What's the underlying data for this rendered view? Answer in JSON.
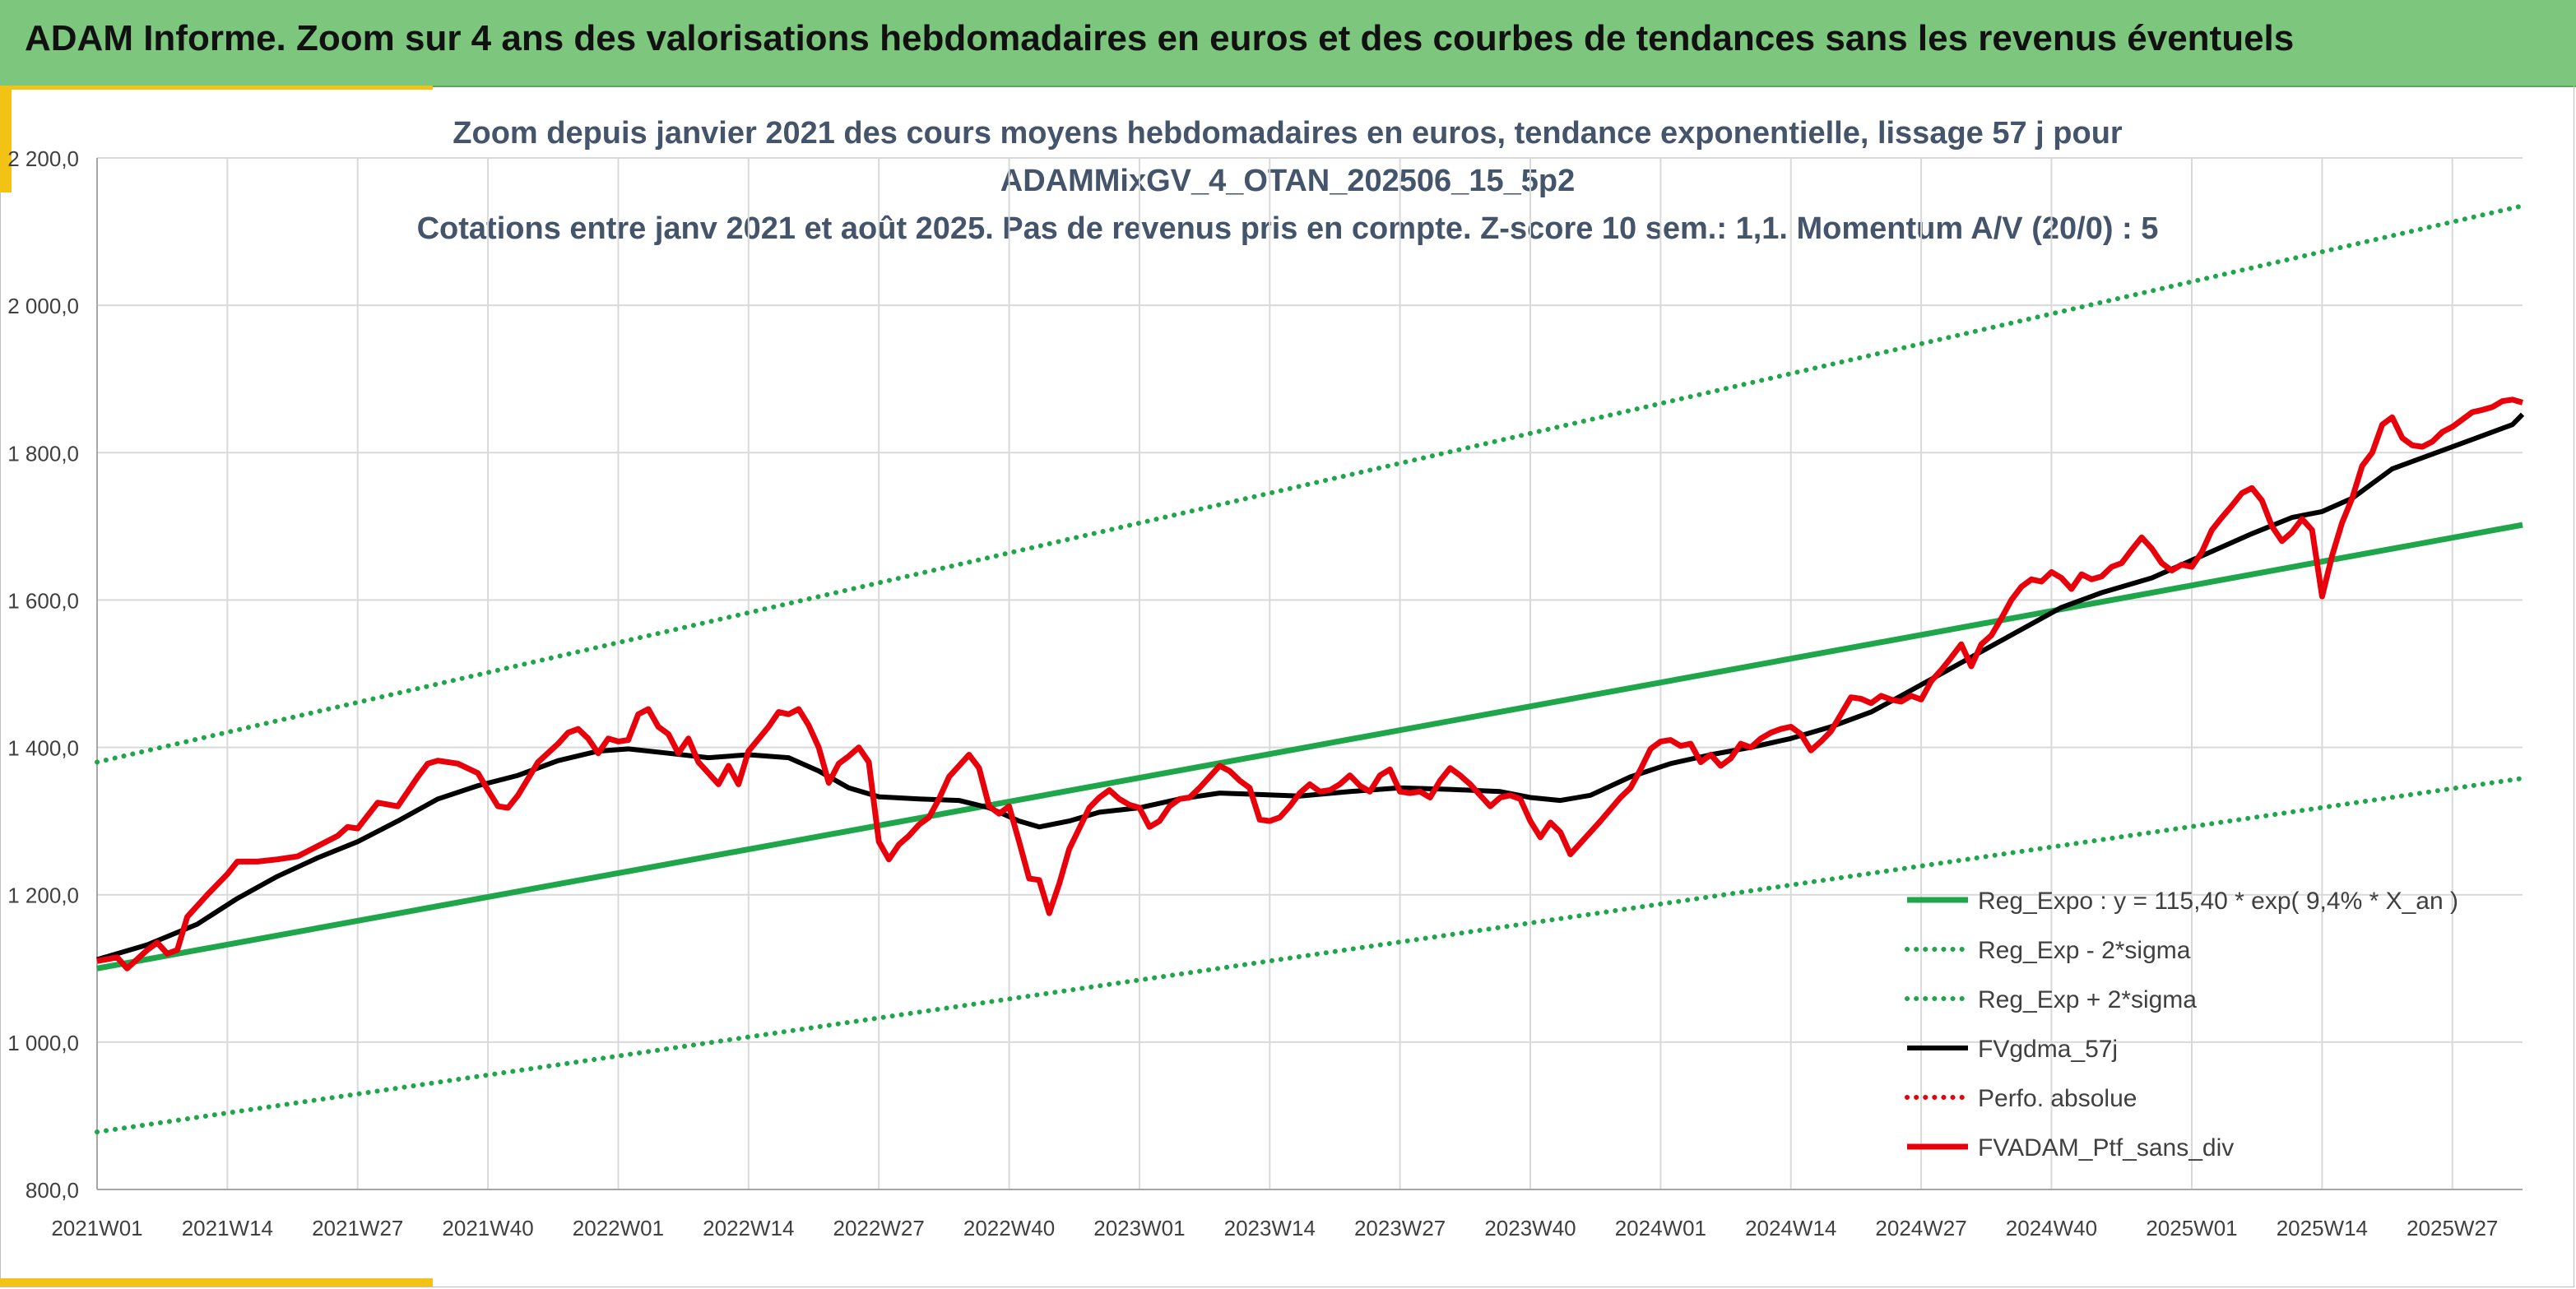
{
  "header": {
    "title": "ADAM Informe. Zoom sur 4 ans des valorisations hebdomadaires en euros et des courbes de tendances sans les revenus éventuels"
  },
  "colors": {
    "header_bg": "#7dc67e",
    "accent": "#f2c314",
    "trend": "#1fa64a",
    "sigma": "#1fa64a",
    "ma": "#000000",
    "portfolio": "#e8000b",
    "perfo": "#e8000b"
  },
  "chart_data": {
    "type": "line",
    "title_lines": [
      "Zoom depuis janvier 2021 des cours moyens hebdomadaires en euros, tendance exponentielle, lissage 57 j pour",
      "ADAMMixGV_4_OTAN_202506_15_5p2",
      "Cotations entre janv 2021 et août 2025. Pas de revenus pris en compte. Z-score 10 sem.: 1,1. Momentum A/V (20/0) : 5"
    ],
    "x_unit": "week index (0 = 2021W01)",
    "x_ticks": [
      "2021W01",
      "2021W14",
      "2021W27",
      "2021W40",
      "2022W01",
      "2022W14",
      "2022W27",
      "2022W40",
      "2023W01",
      "2023W14",
      "2023W27",
      "2023W40",
      "2024W01",
      "2024W14",
      "2024W27",
      "2024W40",
      "2025W01",
      "2025W14",
      "2025W27"
    ],
    "x_tick_weeks": [
      0,
      13,
      26,
      39,
      52,
      65,
      78,
      91,
      104,
      117,
      130,
      143,
      156,
      169,
      182,
      195,
      209,
      222,
      235
    ],
    "x_range": [
      0,
      242
    ],
    "ylim": [
      800,
      2200
    ],
    "y_ticks": [
      800,
      1000,
      1200,
      1400,
      1600,
      1800,
      2000,
      2200
    ],
    "y_tick_labels": [
      "800,0",
      "1 000,0",
      "1 200,0",
      "1 400,0",
      "1 600,0",
      "1 800,0",
      "2 000,0",
      "2 200,0"
    ],
    "grid": true,
    "legend_position": "bottom-right",
    "series": [
      {
        "name": "Reg_Expo : y = 115,40 * exp( 9,4% *  X_an )",
        "style": "solid-thick",
        "color": "#1fa64a",
        "points": [
          [
            0,
            1100
          ],
          [
            242,
            1702
          ]
        ]
      },
      {
        "name": "Reg_Exp - 2*sigma",
        "style": "dotted",
        "color": "#1fa64a",
        "points": [
          [
            0,
            878
          ],
          [
            242,
            1358
          ]
        ]
      },
      {
        "name": "Reg_Exp + 2*sigma",
        "style": "dotted",
        "color": "#1fa64a",
        "points": [
          [
            0,
            1380
          ],
          [
            242,
            2135
          ]
        ]
      },
      {
        "name": "FVgdma_57j",
        "style": "solid",
        "color": "#000000",
        "points": [
          [
            0,
            1112
          ],
          [
            5,
            1132
          ],
          [
            10,
            1160
          ],
          [
            14,
            1195
          ],
          [
            18,
            1225
          ],
          [
            22,
            1250
          ],
          [
            26,
            1272
          ],
          [
            30,
            1300
          ],
          [
            34,
            1330
          ],
          [
            38,
            1348
          ],
          [
            42,
            1362
          ],
          [
            46,
            1382
          ],
          [
            50,
            1395
          ],
          [
            53,
            1398
          ],
          [
            57,
            1392
          ],
          [
            61,
            1386
          ],
          [
            65,
            1390
          ],
          [
            69,
            1386
          ],
          [
            72,
            1368
          ],
          [
            75,
            1345
          ],
          [
            78,
            1333
          ],
          [
            82,
            1330
          ],
          [
            86,
            1328
          ],
          [
            89,
            1318
          ],
          [
            92,
            1300
          ],
          [
            94,
            1292
          ],
          [
            97,
            1300
          ],
          [
            100,
            1312
          ],
          [
            104,
            1318
          ],
          [
            108,
            1330
          ],
          [
            112,
            1338
          ],
          [
            116,
            1336
          ],
          [
            120,
            1334
          ],
          [
            125,
            1340
          ],
          [
            130,
            1345
          ],
          [
            135,
            1343
          ],
          [
            140,
            1340
          ],
          [
            143,
            1332
          ],
          [
            146,
            1328
          ],
          [
            149,
            1335
          ],
          [
            153,
            1360
          ],
          [
            157,
            1378
          ],
          [
            161,
            1390
          ],
          [
            165,
            1400
          ],
          [
            169,
            1412
          ],
          [
            173,
            1428
          ],
          [
            177,
            1448
          ],
          [
            180,
            1470
          ],
          [
            184,
            1500
          ],
          [
            188,
            1530
          ],
          [
            192,
            1560
          ],
          [
            196,
            1590
          ],
          [
            200,
            1610
          ],
          [
            205,
            1630
          ],
          [
            210,
            1660
          ],
          [
            215,
            1690
          ],
          [
            219,
            1712
          ],
          [
            222,
            1720
          ],
          [
            225,
            1738
          ],
          [
            229,
            1778
          ],
          [
            233,
            1798
          ],
          [
            237,
            1818
          ],
          [
            241,
            1838
          ],
          [
            242,
            1852
          ]
        ]
      },
      {
        "name": "Perfo. absolue",
        "style": "dotted",
        "color": "#e8000b",
        "points": []
      },
      {
        "name": "FVADAM_Ptf_sans_div",
        "style": "solid-thick",
        "color": "#e8000b",
        "points": [
          [
            0,
            1110
          ],
          [
            2,
            1115
          ],
          [
            3,
            1100
          ],
          [
            5,
            1125
          ],
          [
            6,
            1135
          ],
          [
            7,
            1120
          ],
          [
            8,
            1125
          ],
          [
            9,
            1170
          ],
          [
            11,
            1200
          ],
          [
            13,
            1228
          ],
          [
            14,
            1245
          ],
          [
            16,
            1245
          ],
          [
            18,
            1248
          ],
          [
            20,
            1252
          ],
          [
            22,
            1266
          ],
          [
            24,
            1280
          ],
          [
            25,
            1292
          ],
          [
            26,
            1290
          ],
          [
            28,
            1325
          ],
          [
            30,
            1320
          ],
          [
            32,
            1360
          ],
          [
            33,
            1378
          ],
          [
            34,
            1382
          ],
          [
            36,
            1378
          ],
          [
            38,
            1365
          ],
          [
            39,
            1342
          ],
          [
            40,
            1320
          ],
          [
            41,
            1318
          ],
          [
            42,
            1335
          ],
          [
            44,
            1380
          ],
          [
            46,
            1405
          ],
          [
            47,
            1420
          ],
          [
            48,
            1425
          ],
          [
            49,
            1412
          ],
          [
            50,
            1392
          ],
          [
            51,
            1412
          ],
          [
            52,
            1408
          ],
          [
            53,
            1410
          ],
          [
            54,
            1445
          ],
          [
            55,
            1452
          ],
          [
            56,
            1428
          ],
          [
            57,
            1418
          ],
          [
            58,
            1392
          ],
          [
            59,
            1412
          ],
          [
            60,
            1380
          ],
          [
            61,
            1365
          ],
          [
            62,
            1350
          ],
          [
            63,
            1375
          ],
          [
            64,
            1350
          ],
          [
            65,
            1395
          ],
          [
            67,
            1428
          ],
          [
            68,
            1448
          ],
          [
            69,
            1445
          ],
          [
            70,
            1452
          ],
          [
            71,
            1430
          ],
          [
            72,
            1400
          ],
          [
            73,
            1352
          ],
          [
            74,
            1378
          ],
          [
            75,
            1388
          ],
          [
            76,
            1400
          ],
          [
            77,
            1380
          ],
          [
            78,
            1272
          ],
          [
            79,
            1248
          ],
          [
            80,
            1268
          ],
          [
            81,
            1280
          ],
          [
            82,
            1295
          ],
          [
            83,
            1305
          ],
          [
            84,
            1330
          ],
          [
            85,
            1360
          ],
          [
            86,
            1375
          ],
          [
            87,
            1390
          ],
          [
            88,
            1372
          ],
          [
            89,
            1320
          ],
          [
            90,
            1310
          ],
          [
            91,
            1320
          ],
          [
            92,
            1272
          ],
          [
            93,
            1222
          ],
          [
            94,
            1220
          ],
          [
            95,
            1175
          ],
          [
            96,
            1215
          ],
          [
            97,
            1262
          ],
          [
            98,
            1290
          ],
          [
            99,
            1318
          ],
          [
            100,
            1332
          ],
          [
            101,
            1342
          ],
          [
            102,
            1330
          ],
          [
            103,
            1322
          ],
          [
            104,
            1318
          ],
          [
            105,
            1292
          ],
          [
            106,
            1300
          ],
          [
            107,
            1320
          ],
          [
            108,
            1330
          ],
          [
            109,
            1332
          ],
          [
            110,
            1345
          ],
          [
            111,
            1360
          ],
          [
            112,
            1375
          ],
          [
            113,
            1368
          ],
          [
            114,
            1355
          ],
          [
            115,
            1345
          ],
          [
            116,
            1302
          ],
          [
            117,
            1300
          ],
          [
            118,
            1305
          ],
          [
            119,
            1320
          ],
          [
            120,
            1338
          ],
          [
            121,
            1350
          ],
          [
            122,
            1340
          ],
          [
            123,
            1342
          ],
          [
            124,
            1350
          ],
          [
            125,
            1362
          ],
          [
            126,
            1348
          ],
          [
            127,
            1340
          ],
          [
            128,
            1362
          ],
          [
            129,
            1370
          ],
          [
            130,
            1340
          ],
          [
            131,
            1338
          ],
          [
            132,
            1340
          ],
          [
            133,
            1332
          ],
          [
            134,
            1355
          ],
          [
            135,
            1372
          ],
          [
            136,
            1362
          ],
          [
            137,
            1350
          ],
          [
            138,
            1335
          ],
          [
            139,
            1320
          ],
          [
            140,
            1332
          ],
          [
            141,
            1335
          ],
          [
            142,
            1330
          ],
          [
            143,
            1300
          ],
          [
            144,
            1278
          ],
          [
            145,
            1298
          ],
          [
            146,
            1285
          ],
          [
            147,
            1255
          ],
          [
            148,
            1270
          ],
          [
            150,
            1300
          ],
          [
            152,
            1332
          ],
          [
            153,
            1345
          ],
          [
            154,
            1370
          ],
          [
            155,
            1398
          ],
          [
            156,
            1408
          ],
          [
            157,
            1410
          ],
          [
            158,
            1402
          ],
          [
            159,
            1405
          ],
          [
            160,
            1380
          ],
          [
            161,
            1390
          ],
          [
            162,
            1375
          ],
          [
            163,
            1385
          ],
          [
            164,
            1405
          ],
          [
            165,
            1400
          ],
          [
            166,
            1412
          ],
          [
            167,
            1420
          ],
          [
            168,
            1425
          ],
          [
            169,
            1428
          ],
          [
            170,
            1418
          ],
          [
            171,
            1396
          ],
          [
            172,
            1408
          ],
          [
            173,
            1422
          ],
          [
            174,
            1445
          ],
          [
            175,
            1468
          ],
          [
            176,
            1466
          ],
          [
            177,
            1460
          ],
          [
            178,
            1470
          ],
          [
            179,
            1465
          ],
          [
            180,
            1462
          ],
          [
            181,
            1470
          ],
          [
            182,
            1465
          ],
          [
            183,
            1490
          ],
          [
            184,
            1505
          ],
          [
            185,
            1522
          ],
          [
            186,
            1540
          ],
          [
            187,
            1510
          ],
          [
            188,
            1540
          ],
          [
            189,
            1552
          ],
          [
            190,
            1575
          ],
          [
            191,
            1600
          ],
          [
            192,
            1618
          ],
          [
            193,
            1628
          ],
          [
            194,
            1625
          ],
          [
            195,
            1638
          ],
          [
            196,
            1630
          ],
          [
            197,
            1615
          ],
          [
            198,
            1635
          ],
          [
            199,
            1628
          ],
          [
            200,
            1632
          ],
          [
            201,
            1645
          ],
          [
            202,
            1650
          ],
          [
            203,
            1668
          ],
          [
            204,
            1685
          ],
          [
            205,
            1670
          ],
          [
            206,
            1650
          ],
          [
            207,
            1640
          ],
          [
            208,
            1648
          ],
          [
            209,
            1645
          ],
          [
            210,
            1665
          ],
          [
            211,
            1695
          ],
          [
            212,
            1712
          ],
          [
            213,
            1728
          ],
          [
            214,
            1745
          ],
          [
            215,
            1752
          ],
          [
            216,
            1735
          ],
          [
            217,
            1700
          ],
          [
            218,
            1680
          ],
          [
            219,
            1692
          ],
          [
            220,
            1710
          ],
          [
            221,
            1695
          ],
          [
            222,
            1605
          ],
          [
            223,
            1660
          ],
          [
            224,
            1705
          ],
          [
            225,
            1738
          ],
          [
            226,
            1782
          ],
          [
            227,
            1800
          ],
          [
            228,
            1838
          ],
          [
            229,
            1848
          ],
          [
            230,
            1820
          ],
          [
            231,
            1810
          ],
          [
            232,
            1808
          ],
          [
            233,
            1815
          ],
          [
            234,
            1828
          ],
          [
            235,
            1835
          ],
          [
            236,
            1845
          ],
          [
            237,
            1855
          ],
          [
            238,
            1858
          ],
          [
            239,
            1862
          ],
          [
            240,
            1870
          ],
          [
            241,
            1872
          ],
          [
            242,
            1868
          ]
        ]
      }
    ]
  }
}
